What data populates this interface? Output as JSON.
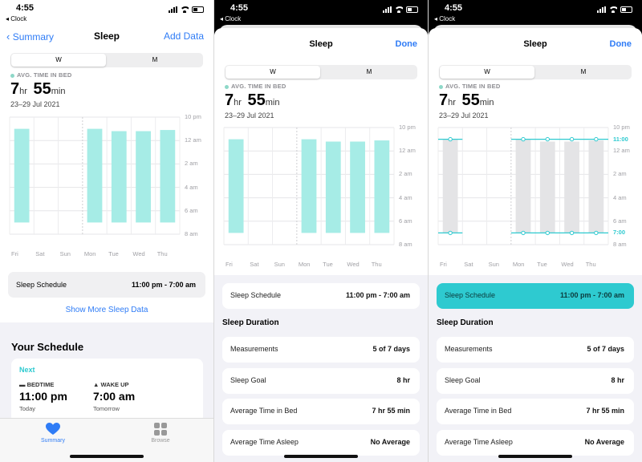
{
  "colors": {
    "accent": "#2f7cf6",
    "teal": "#2ecad0",
    "bar_fill": "#a6ece6",
    "asleep_gray": "#e4e4e6"
  },
  "status": {
    "time": "4:55",
    "back_app": "Clock"
  },
  "screen1": {
    "nav": {
      "back": "Summary",
      "title": "Sleep",
      "action": "Add Data"
    },
    "segments": [
      "W",
      "M"
    ],
    "avg_label": "AVG. TIME IN BED",
    "avg_hr": "7",
    "avg_hr_unit": "hr",
    "avg_min": "55",
    "avg_min_unit": "min",
    "date_range": "23–29 Jul 2021",
    "schedule_row": {
      "label": "Sleep Schedule",
      "value": "11:00 pm - 7:00 am"
    },
    "show_more": "Show More Sleep Data",
    "your_schedule": "Your Schedule",
    "card": {
      "next": "Next",
      "bedtime_label": "BEDTIME",
      "bedtime": "11:00 pm",
      "bedtime_day": "Today",
      "wake_label": "WAKE UP",
      "wake": "7:00 am",
      "wake_day": "Tomorrow"
    },
    "tabs": [
      {
        "label": "Summary"
      },
      {
        "label": "Browse"
      }
    ]
  },
  "sheet": {
    "title": "Sleep",
    "done": "Done",
    "segments": [
      "W",
      "M"
    ],
    "avg_label": "AVG. TIME IN BED",
    "avg_hr": "7",
    "avg_hr_unit": "hr",
    "avg_min": "55",
    "avg_min_unit": "min",
    "date_range": "23–29 Jul 2021",
    "schedule_row": {
      "label": "Sleep Schedule",
      "value": "11:00 pm - 7:00 am"
    },
    "duration_head": "Sleep Duration",
    "rows": [
      {
        "label": "Measurements",
        "value": "5 of 7 days"
      },
      {
        "label": "Sleep Goal",
        "value": "8 hr"
      },
      {
        "label": "Average Time in Bed",
        "value": "7 hr 55 min"
      },
      {
        "label": "Average Time Asleep",
        "value": "No Average"
      }
    ],
    "schedule_markers": [
      "11:00",
      "7:00"
    ]
  },
  "chart_data": {
    "type": "bar",
    "categories": [
      "Fri",
      "Sat",
      "Sun",
      "Mon",
      "Tue",
      "Wed",
      "Thu"
    ],
    "y_ticks": [
      "10 pm",
      "12 am",
      "2 am",
      "4 am",
      "6 am",
      "8 am"
    ],
    "y_range_hours": [
      22,
      32
    ],
    "series": [
      {
        "name": "",
        "start": [
          23.0,
          null,
          null,
          23.0,
          23.2,
          23.2,
          23.1
        ],
        "end": [
          31.0,
          null,
          null,
          31.0,
          31.0,
          31.0,
          31.0
        ]
      }
    ],
    "schedule": {
      "start": 23.0,
      "end": 31.0
    }
  }
}
